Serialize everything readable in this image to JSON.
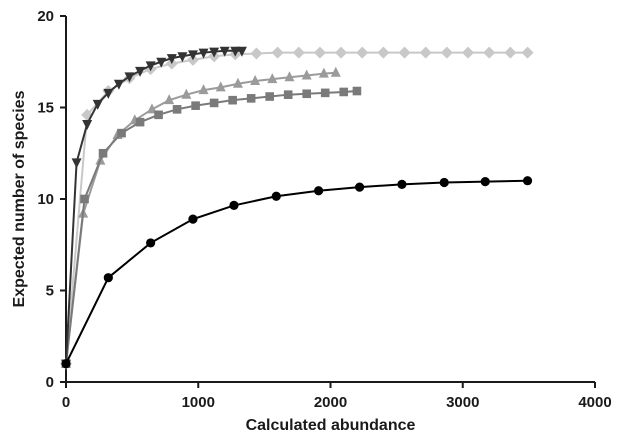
{
  "chart_data": {
    "type": "line",
    "title": "",
    "xlabel": "Calculated abundance",
    "ylabel": "Expected number of species",
    "xlim": [
      0,
      4000
    ],
    "ylim": [
      0,
      20
    ],
    "xticks": [
      0,
      1000,
      2000,
      3000,
      4000
    ],
    "yticks": [
      0,
      5,
      10,
      15,
      20
    ],
    "xtick_labels": [
      "0",
      "1000",
      "2000",
      "3000",
      "4000"
    ],
    "ytick_labels": [
      "0",
      "5",
      "10",
      "15",
      "20"
    ],
    "grid": false,
    "series": [
      {
        "color": "#333333",
        "marker": "triangle-down",
        "x": [
          0,
          80,
          160,
          240,
          320,
          400,
          480,
          560,
          640,
          720,
          800,
          880,
          960,
          1040,
          1120,
          1200,
          1280,
          1330
        ],
        "y": [
          1,
          12.0,
          14.1,
          15.2,
          15.8,
          16.3,
          16.7,
          17.0,
          17.3,
          17.5,
          17.7,
          17.8,
          17.9,
          18.0,
          18.05,
          18.1,
          18.1,
          18.1
        ]
      },
      {
        "color": "#c8c8c8",
        "marker": "diamond",
        "x": [
          0,
          160,
          320,
          480,
          640,
          800,
          960,
          1120,
          1280,
          1440,
          1600,
          1760,
          1920,
          2080,
          2240,
          2400,
          2560,
          2720,
          2880,
          3040,
          3200,
          3360,
          3490
        ],
        "y": [
          1,
          14.6,
          15.9,
          16.6,
          17.1,
          17.4,
          17.6,
          17.8,
          17.9,
          17.95,
          18.0,
          18.0,
          18.0,
          18.0,
          18.0,
          18.0,
          18.0,
          18.0,
          18.0,
          18.0,
          18.0,
          18.0,
          18.0
        ]
      },
      {
        "color": "#9b9b9b",
        "marker": "triangle-up",
        "x": [
          0,
          130,
          260,
          390,
          520,
          650,
          780,
          910,
          1040,
          1170,
          1300,
          1430,
          1560,
          1690,
          1820,
          1950,
          2040
        ],
        "y": [
          1,
          9.2,
          12.1,
          13.5,
          14.3,
          14.9,
          15.4,
          15.7,
          15.95,
          16.1,
          16.3,
          16.45,
          16.55,
          16.65,
          16.75,
          16.85,
          16.9
        ]
      },
      {
        "color": "#7a7a7a",
        "marker": "square",
        "x": [
          0,
          140,
          280,
          420,
          560,
          700,
          840,
          980,
          1120,
          1260,
          1400,
          1540,
          1680,
          1820,
          1960,
          2100,
          2200
        ],
        "y": [
          1,
          10.0,
          12.5,
          13.6,
          14.2,
          14.6,
          14.9,
          15.1,
          15.25,
          15.4,
          15.5,
          15.6,
          15.7,
          15.75,
          15.8,
          15.85,
          15.9
        ]
      },
      {
        "color": "#000000",
        "marker": "circle",
        "x": [
          0,
          320,
          640,
          960,
          1270,
          1590,
          1910,
          2220,
          2540,
          2860,
          3170,
          3490
        ],
        "y": [
          1,
          5.7,
          7.6,
          8.9,
          9.65,
          10.15,
          10.45,
          10.65,
          10.8,
          10.9,
          10.95,
          11.0
        ]
      }
    ]
  }
}
